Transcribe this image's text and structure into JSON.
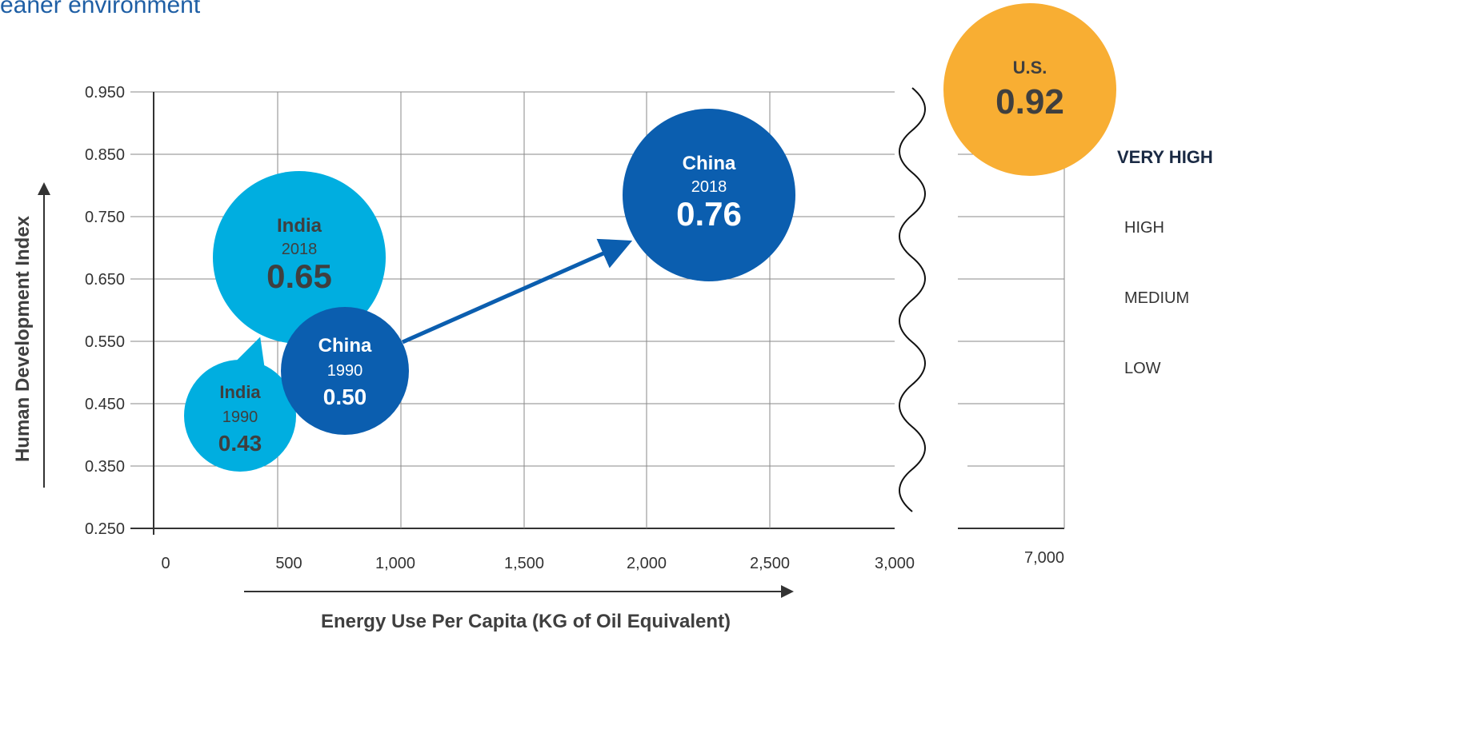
{
  "header": {
    "partial_title": "eaner environment"
  },
  "colors": {
    "india": "#00aee0",
    "china": "#0b5eaf",
    "us": "#f8ae33",
    "arrow_india": "#00aee0",
    "arrow_china": "#0b5eaf",
    "grid": "#8a8a8a",
    "text_dark": "#3f3f3f",
    "text_gray": "#333333"
  },
  "chart_data": {
    "type": "scatter",
    "title": "",
    "xlabel": "Energy Use Per Capita (KG of Oil Equivalent)",
    "ylabel": "Human Development Index",
    "x_ticks": [
      "0",
      "500",
      "1,000",
      "1,500",
      "2,000",
      "2,500",
      "3,000"
    ],
    "x_ticks_values": [
      0,
      500,
      1000,
      1500,
      2000,
      2500,
      3000
    ],
    "x_break_tick": "7,000",
    "y_ticks": [
      "0.250",
      "0.350",
      "0.450",
      "0.550",
      "0.650",
      "0.750",
      "0.850",
      "0.950"
    ],
    "y_ticks_values": [
      0.25,
      0.35,
      0.45,
      0.55,
      0.65,
      0.75,
      0.85,
      0.95
    ],
    "xlim": [
      -50,
      3000
    ],
    "ylim": [
      0.25,
      0.95
    ],
    "axis_break": true,
    "grid": true,
    "points": [
      {
        "name": "India",
        "year": "1990",
        "label": "0.43",
        "x": 350,
        "y": 0.43,
        "group": "india",
        "size": "small"
      },
      {
        "name": "India",
        "year": "2018",
        "label": "0.65",
        "x": 600,
        "y": 0.65,
        "group": "india",
        "size": "large"
      },
      {
        "name": "China",
        "year": "1990",
        "label": "0.50",
        "x": 780,
        "y": 0.5,
        "group": "china",
        "size": "medium"
      },
      {
        "name": "China",
        "year": "2018",
        "label": "0.76",
        "x": 2260,
        "y": 0.76,
        "group": "china",
        "size": "large"
      },
      {
        "name": "U.S.",
        "year": "",
        "label": "0.92",
        "x": 7000,
        "y": 0.92,
        "group": "us",
        "size": "large"
      }
    ],
    "arrows": [
      {
        "from": "India 1990",
        "to": "India 2018"
      },
      {
        "from": "China 1990",
        "to": "China 2018"
      }
    ],
    "hdi_levels": [
      "VERY HIGH",
      "HIGH",
      "MEDIUM",
      "LOW"
    ]
  }
}
